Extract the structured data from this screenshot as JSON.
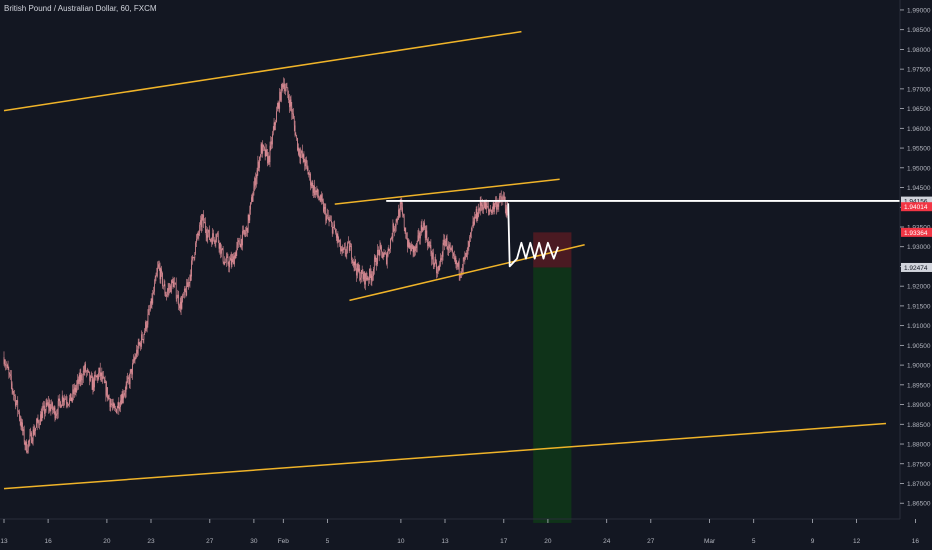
{
  "header": {
    "title": "British Pound / Australian Dollar, 60, FXCM"
  },
  "colors": {
    "background": "#131722",
    "candle": "#e08f98",
    "axis_text": "#b2b5be",
    "trendline": "#f0b429",
    "level_line": "#ffffff",
    "stop_zone": "#4a1a22",
    "target_zone": "#0f3319",
    "tag_gray": "#d1d4dc",
    "tag_red": "#f23645"
  },
  "chart_data": {
    "type": "candlestick",
    "title": "British Pound / Australian Dollar, 60, FXCM",
    "ylim": [
      1.861,
      1.991
    ],
    "y_ticks": [
      "1.99000",
      "1.98500",
      "1.98000",
      "1.97500",
      "1.97000",
      "1.96500",
      "1.96000",
      "1.95500",
      "1.95000",
      "1.94500",
      "1.94000",
      "1.93500",
      "1.93000",
      "1.92500",
      "1.92000",
      "1.91500",
      "1.91000",
      "1.90500",
      "1.90000",
      "1.89500",
      "1.89000",
      "1.88500",
      "1.88000",
      "1.87500",
      "1.87000",
      "1.86500"
    ],
    "x_ticks": [
      {
        "label": "13",
        "i": 0
      },
      {
        "label": "16",
        "i": 3
      },
      {
        "label": "20",
        "i": 7
      },
      {
        "label": "23",
        "i": 10
      },
      {
        "label": "27",
        "i": 14
      },
      {
        "label": "30",
        "i": 17
      },
      {
        "label": "Feb",
        "i": 19
      },
      {
        "label": "5",
        "i": 22
      },
      {
        "label": "10",
        "i": 27
      },
      {
        "label": "13",
        "i": 30
      },
      {
        "label": "17",
        "i": 34
      },
      {
        "label": "20",
        "i": 37
      },
      {
        "label": "24",
        "i": 41
      },
      {
        "label": "27",
        "i": 44
      },
      {
        "label": "Mar",
        "i": 48
      },
      {
        "label": "5",
        "i": 51
      },
      {
        "label": "9",
        "i": 55
      },
      {
        "label": "12",
        "i": 58
      },
      {
        "label": "16",
        "i": 62
      }
    ],
    "price_tags": [
      {
        "label": "1.94156",
        "value": 1.94156,
        "style": "white"
      },
      {
        "label": "1.94014",
        "value": 1.94014,
        "style": "red"
      },
      {
        "label": "1.93364",
        "value": 1.93364,
        "style": "red"
      },
      {
        "label": "1.92474",
        "value": 1.92474,
        "style": "white"
      }
    ],
    "close_path": [
      [
        0,
        1.902
      ],
      [
        0.5,
        1.895
      ],
      [
        1,
        1.888
      ],
      [
        1.5,
        1.879
      ],
      [
        2,
        1.883
      ],
      [
        2.5,
        1.887
      ],
      [
        3,
        1.89
      ],
      [
        3.5,
        1.888
      ],
      [
        4,
        1.892
      ],
      [
        4.5,
        1.891
      ],
      [
        5,
        1.895
      ],
      [
        5.5,
        1.899
      ],
      [
        6,
        1.895
      ],
      [
        6.5,
        1.898
      ],
      [
        7,
        1.893
      ],
      [
        7.5,
        1.888
      ],
      [
        8,
        1.892
      ],
      [
        8.5,
        1.896
      ],
      [
        9,
        1.903
      ],
      [
        9.5,
        1.908
      ],
      [
        10,
        1.915
      ],
      [
        10.5,
        1.925
      ],
      [
        11,
        1.918
      ],
      [
        11.5,
        1.921
      ],
      [
        12,
        1.915
      ],
      [
        12.5,
        1.92
      ],
      [
        13,
        1.93
      ],
      [
        13.5,
        1.937
      ],
      [
        14,
        1.932
      ],
      [
        14.5,
        1.933
      ],
      [
        15,
        1.926
      ],
      [
        15.5,
        1.926
      ],
      [
        16,
        1.931
      ],
      [
        16.5,
        1.934
      ],
      [
        17,
        1.945
      ],
      [
        17.5,
        1.955
      ],
      [
        18,
        1.952
      ],
      [
        18.5,
        1.963
      ],
      [
        19,
        1.972
      ],
      [
        19.5,
        1.966
      ],
      [
        20,
        1.955
      ],
      [
        20.5,
        1.951
      ],
      [
        21,
        1.945
      ],
      [
        21.5,
        1.942
      ],
      [
        22,
        1.937
      ],
      [
        22.5,
        1.934
      ],
      [
        23,
        1.928
      ],
      [
        23.5,
        1.93
      ],
      [
        24,
        1.924
      ],
      [
        24.5,
        1.922
      ],
      [
        25,
        1.923
      ],
      [
        25.5,
        1.929
      ],
      [
        26,
        1.927
      ],
      [
        26.5,
        1.935
      ],
      [
        27,
        1.94
      ],
      [
        27.5,
        1.93
      ],
      [
        28,
        1.929
      ],
      [
        28.5,
        1.936
      ],
      [
        29,
        1.929
      ],
      [
        29.5,
        1.923
      ],
      [
        30,
        1.932
      ],
      [
        30.5,
        1.927
      ],
      [
        31,
        1.924
      ],
      [
        31.5,
        1.928
      ],
      [
        32,
        1.937
      ],
      [
        32.5,
        1.941
      ],
      [
        33,
        1.939
      ],
      [
        33.5,
        1.941
      ],
      [
        34,
        1.942
      ],
      [
        34.3,
        1.937
      ]
    ],
    "projection_path": [
      [
        34.3,
        1.941
      ],
      [
        34.4,
        1.925
      ],
      [
        34.9,
        1.927
      ],
      [
        35.2,
        1.931
      ],
      [
        35.5,
        1.927
      ],
      [
        35.8,
        1.931
      ],
      [
        36.1,
        1.927
      ],
      [
        36.4,
        1.931
      ],
      [
        36.7,
        1.927
      ],
      [
        37,
        1.931
      ],
      [
        37.4,
        1.927
      ],
      [
        37.7,
        1.93
      ]
    ],
    "trendlines": [
      {
        "name": "upper-channel-line",
        "from": [
          0,
          1.9645
        ],
        "to": [
          35.2,
          1.9845
        ]
      },
      {
        "name": "lower-channel-line",
        "from": [
          0,
          1.8687
        ],
        "to": [
          60,
          1.8852
        ]
      },
      {
        "name": "pattern-upper-line",
        "from": [
          22.5,
          1.9408
        ],
        "to": [
          37.8,
          1.9471
        ]
      },
      {
        "name": "pattern-lower-line",
        "from": [
          23.5,
          1.9164
        ],
        "to": [
          39.5,
          1.9305
        ]
      }
    ],
    "level": {
      "name": "resistance-level",
      "value": 1.9416,
      "from": 26,
      "to": 62
    },
    "position": {
      "from": 36,
      "to": 38.6,
      "entry": 1.92474,
      "stop": 1.93364,
      "target": 1.86
    }
  }
}
